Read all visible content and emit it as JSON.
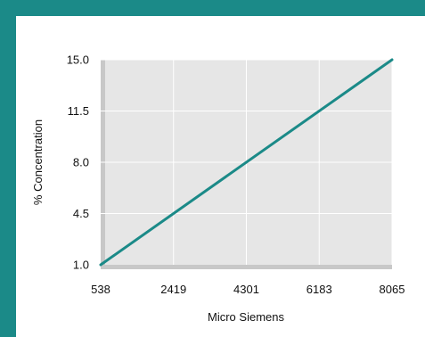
{
  "colors": {
    "frame": "#1b8a88",
    "panel": "#ffffff",
    "plot_background": "#e6e6e6",
    "gridline": "#ffffff",
    "axis_shadow": "#c8c8c8",
    "series_line": "#1b8a88"
  },
  "chart_data": {
    "type": "line",
    "title": "",
    "xlabel": "Micro Siemens",
    "ylabel": "% Concentration",
    "x_ticks": [
      "538",
      "2419",
      "4301",
      "6183",
      "8065"
    ],
    "y_ticks": [
      "1.0",
      "4.5",
      "8.0",
      "11.5",
      "15.0"
    ],
    "xlim": [
      538,
      8065
    ],
    "ylim": [
      1.0,
      15.0
    ],
    "grid": true,
    "series": [
      {
        "x": [
          538,
          8065
        ],
        "y": [
          1.0,
          15.0
        ]
      }
    ]
  }
}
